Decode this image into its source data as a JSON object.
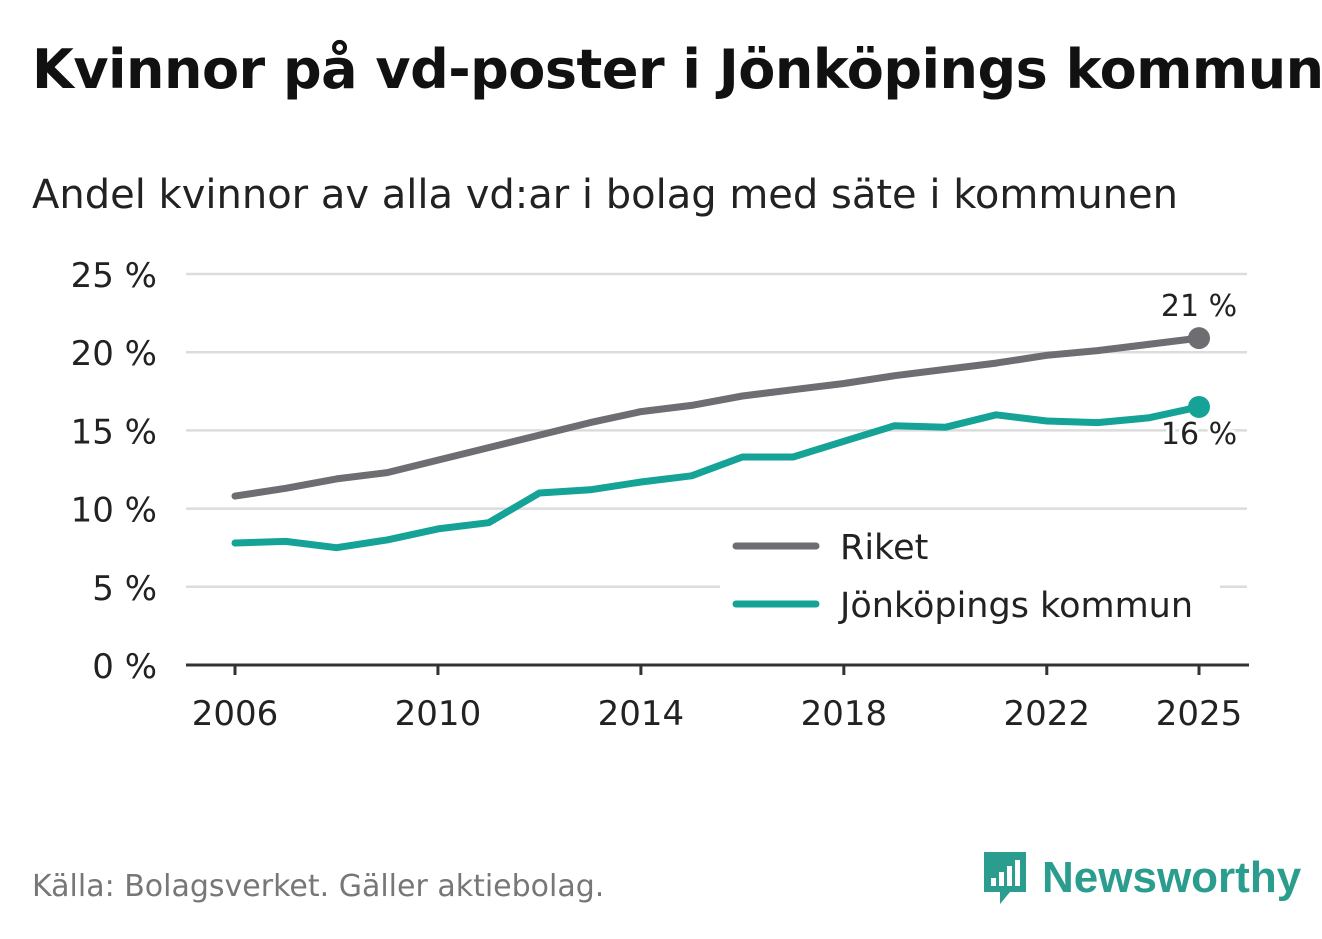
{
  "header": {
    "title": "Kvinnor på vd-poster i Jönköpings kommun",
    "subtitle": "Andel kvinnor av alla vd:ar i bolag med säte i kommunen"
  },
  "footer": {
    "source": "Källa: Bolagsverket. Gäller aktiebolag.",
    "brand": "Newsworthy"
  },
  "colors": {
    "riket": "#6d6d72",
    "kommun": "#14a396",
    "brand": "#2a9d8f"
  },
  "chart_data": {
    "type": "line",
    "title": "Kvinnor på vd-poster i Jönköpings kommun",
    "subtitle": "Andel kvinnor av alla vd:ar i bolag med säte i kommunen",
    "xlabel": "",
    "ylabel": "",
    "x": [
      2006,
      2007,
      2008,
      2009,
      2010,
      2011,
      2012,
      2013,
      2014,
      2015,
      2016,
      2017,
      2018,
      2019,
      2020,
      2021,
      2022,
      2023,
      2024,
      2025
    ],
    "x_ticks": [
      2006,
      2010,
      2014,
      2018,
      2022,
      2025
    ],
    "x_tick_labels": [
      "2006",
      "2010",
      "2014",
      "2018",
      "2022",
      "2025"
    ],
    "xlim": [
      2006,
      2025
    ],
    "ylim": [
      0,
      25
    ],
    "y_ticks": [
      0,
      5,
      10,
      15,
      20,
      25
    ],
    "y_tick_labels": [
      "0 %",
      "5 %",
      "10 %",
      "15 %",
      "20 %",
      "25 %"
    ],
    "grid": true,
    "legend_position": "bottom-right",
    "series": [
      {
        "name": "Riket",
        "key": "riket",
        "values": [
          10.8,
          11.3,
          11.9,
          12.3,
          13.1,
          13.9,
          14.7,
          15.5,
          16.2,
          16.6,
          17.2,
          17.6,
          18.0,
          18.5,
          18.9,
          19.3,
          19.8,
          20.1,
          20.5,
          20.9
        ],
        "end_label": "21 %"
      },
      {
        "name": "Jönköpings kommun",
        "key": "kommun",
        "values": [
          7.8,
          7.9,
          7.5,
          8.0,
          8.7,
          9.1,
          11.0,
          11.2,
          11.7,
          12.1,
          13.3,
          13.3,
          14.3,
          15.3,
          15.2,
          16.0,
          15.6,
          15.5,
          15.8,
          16.5
        ],
        "end_label": "16 %"
      }
    ]
  }
}
